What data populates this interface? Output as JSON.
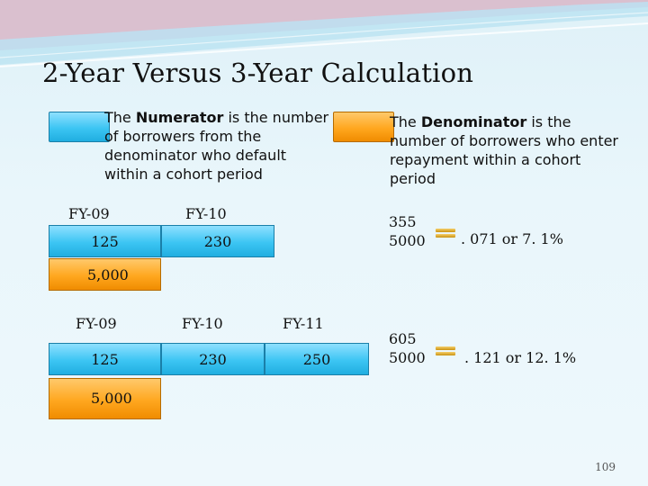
{
  "title": "2-Year Versus 3-Year Calculation",
  "legend": {
    "numerator": {
      "pre": "The ",
      "bold": "Numerator",
      "post": " is the number of borrowers from the denominator who default within a cohort period"
    },
    "denominator": {
      "pre": "The ",
      "bold": "Denominator",
      "post": " is the number of borrowers who enter repayment within a cohort period"
    }
  },
  "two_year": {
    "years": [
      "FY-09",
      "FY-10"
    ],
    "numerators": [
      "125",
      "230"
    ],
    "denominator": "5,000",
    "fraction_num": "355",
    "fraction_den": "5000",
    "result": ". 071 or 7. 1%"
  },
  "three_year": {
    "years": [
      "FY-09",
      "FY-10",
      "FY-11"
    ],
    "numerators": [
      "125",
      "230",
      "250"
    ],
    "denominator": "5,000",
    "fraction_num": "605",
    "fraction_den": "5000",
    "result": ". 121 or 12. 1%"
  },
  "page_number": "109",
  "colors": {
    "numerator_fill": "#3cc5f3",
    "denominator_fill": "#ffa71f",
    "title_text": "#111111"
  }
}
